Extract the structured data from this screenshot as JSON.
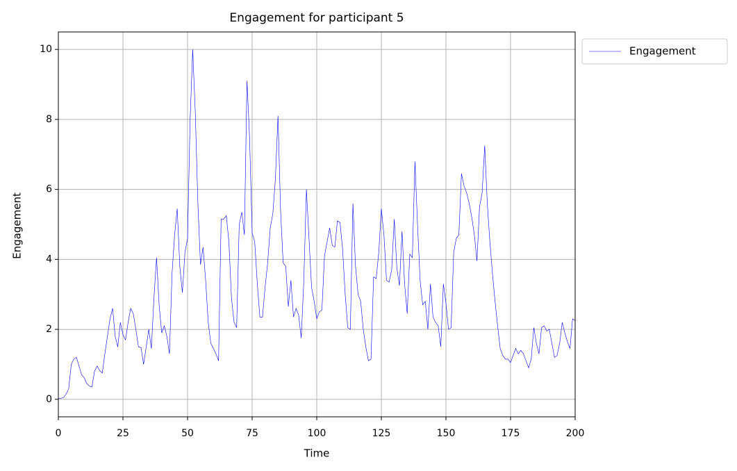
{
  "chart_data": {
    "type": "line",
    "title": "Engagement for participant 5",
    "xlabel": "Time",
    "ylabel": "Engagement",
    "x": [
      0,
      1,
      2,
      3,
      4,
      5,
      6,
      7,
      8,
      9,
      10,
      11,
      12,
      13,
      14,
      15,
      16,
      17,
      18,
      19,
      20,
      21,
      22,
      23,
      24,
      25,
      26,
      27,
      28,
      29,
      30,
      31,
      32,
      33,
      34,
      35,
      36,
      37,
      38,
      39,
      40,
      41,
      42,
      43,
      44,
      45,
      46,
      47,
      48,
      49,
      50,
      51,
      52,
      53,
      54,
      55,
      56,
      57,
      58,
      59,
      60,
      61,
      62,
      63,
      64,
      65,
      66,
      67,
      68,
      69,
      70,
      71,
      72,
      73,
      74,
      75,
      76,
      77,
      78,
      79,
      80,
      81,
      82,
      83,
      84,
      85,
      86,
      87,
      88,
      89,
      90,
      91,
      92,
      93,
      94,
      95,
      96,
      97,
      98,
      99,
      100,
      101,
      102,
      103,
      104,
      105,
      106,
      107,
      108,
      109,
      110,
      111,
      112,
      113,
      114,
      115,
      116,
      117,
      118,
      119,
      120,
      121,
      122,
      123,
      124,
      125,
      126,
      127,
      128,
      129,
      130,
      131,
      132,
      133,
      134,
      135,
      136,
      137,
      138,
      139,
      140,
      141,
      142,
      143,
      144,
      145,
      146,
      147,
      148,
      149,
      150,
      151,
      152,
      153,
      154,
      155,
      156,
      157,
      158,
      159,
      160,
      161,
      162,
      163,
      164,
      165,
      166,
      167,
      168,
      169,
      170,
      171,
      172,
      173,
      174,
      175,
      176,
      177,
      178,
      179,
      180,
      181,
      182,
      183,
      184,
      185,
      186,
      187,
      188,
      189,
      190,
      191,
      192,
      193,
      194,
      195,
      196,
      197,
      198,
      199,
      200
    ],
    "series": [
      {
        "name": "Engagement",
        "color": "#0000ff",
        "values": [
          0.02,
          0.03,
          0.05,
          0.15,
          0.3,
          1.0,
          1.15,
          1.2,
          0.95,
          0.7,
          0.62,
          0.45,
          0.38,
          0.35,
          0.8,
          0.95,
          0.82,
          0.75,
          1.3,
          1.8,
          2.3,
          2.6,
          1.8,
          1.5,
          2.2,
          1.85,
          1.7,
          2.2,
          2.6,
          2.45,
          2.0,
          1.5,
          1.48,
          1.0,
          1.5,
          2.0,
          1.45,
          2.9,
          4.05,
          2.7,
          1.9,
          2.1,
          1.8,
          1.3,
          3.6,
          4.7,
          5.45,
          3.8,
          3.05,
          4.2,
          4.6,
          8.0,
          10.0,
          8.2,
          5.6,
          3.85,
          4.35,
          3.4,
          2.2,
          1.6,
          1.45,
          1.3,
          1.1,
          5.15,
          5.15,
          5.25,
          4.5,
          2.9,
          2.2,
          2.05,
          5.0,
          5.35,
          4.7,
          9.1,
          7.5,
          4.75,
          4.5,
          3.3,
          2.35,
          2.35,
          3.2,
          3.9,
          4.9,
          5.3,
          6.3,
          8.1,
          5.4,
          3.9,
          3.8,
          2.65,
          3.4,
          2.35,
          2.6,
          2.4,
          1.75,
          3.4,
          6.0,
          4.6,
          3.2,
          2.8,
          2.3,
          2.5,
          2.55,
          4.1,
          4.5,
          4.9,
          4.4,
          4.35,
          5.1,
          5.05,
          4.3,
          3.0,
          2.05,
          2.0,
          5.6,
          3.8,
          3.0,
          2.8,
          2.0,
          1.5,
          1.1,
          1.15,
          3.5,
          3.45,
          4.2,
          5.45,
          4.7,
          3.4,
          3.35,
          3.7,
          5.15,
          3.75,
          3.25,
          4.8,
          3.3,
          2.45,
          4.15,
          4.05,
          6.8,
          5.0,
          3.4,
          2.7,
          2.8,
          2.0,
          3.3,
          2.35,
          2.2,
          2.1,
          1.5,
          3.3,
          2.75,
          2.0,
          2.05,
          4.2,
          4.6,
          4.7,
          6.45,
          6.1,
          5.9,
          5.6,
          5.2,
          4.7,
          3.95,
          5.5,
          5.9,
          7.25,
          5.6,
          4.5,
          3.6,
          2.8,
          2.1,
          1.45,
          1.25,
          1.15,
          1.15,
          1.05,
          1.25,
          1.45,
          1.3,
          1.4,
          1.3,
          1.1,
          0.9,
          1.15,
          2.05,
          1.6,
          1.3,
          2.05,
          2.1,
          1.95,
          2.0,
          1.6,
          1.2,
          1.25,
          1.6,
          2.2,
          1.9,
          1.65,
          1.45,
          2.3,
          2.25
        ]
      }
    ],
    "xlim": [
      0,
      200
    ],
    "xticks": [
      0,
      25,
      50,
      75,
      100,
      125,
      150,
      175,
      200
    ],
    "ylim": [
      -0.5,
      10.5
    ],
    "yticks": [
      0,
      2,
      4,
      6,
      8,
      10
    ],
    "grid": true,
    "legend": "outside upper right"
  }
}
